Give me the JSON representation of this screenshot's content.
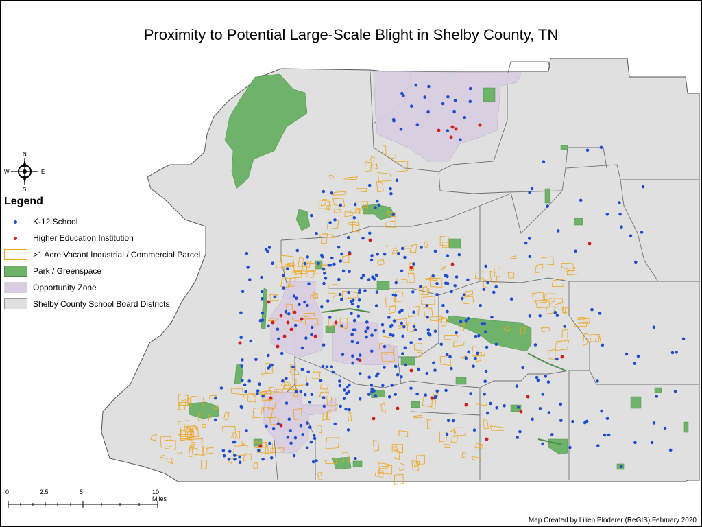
{
  "title": "Proximity to Potential Large-Scale Blight in Shelby County, TN",
  "compass": {
    "n": "N",
    "s": "S",
    "e": "E",
    "w": "W"
  },
  "legend": {
    "title": "Legend",
    "items": [
      {
        "label": "K-12 School",
        "symbol": "dot",
        "color": "#1f4fd1"
      },
      {
        "label": "Higher Education Institution",
        "symbol": "dot",
        "color": "#d11f1f"
      },
      {
        "label": ">1 Acre Vacant Industrial / Commercial Parcel",
        "symbol": "outline",
        "color": "#f0a51c"
      },
      {
        "label": "Park / Greenspace",
        "symbol": "fill",
        "color": "#6fb36b"
      },
      {
        "label": "Opportunity Zone",
        "symbol": "fill",
        "color": "#d9cde0"
      },
      {
        "label": "Shelby County School Board Districts",
        "symbol": "fill",
        "color": "#e0e0e0"
      }
    ]
  },
  "scale": {
    "ticks": [
      "0",
      "2.5",
      "5",
      "10 Miles"
    ]
  },
  "credit": "Map Created by Lilien Ploderer (ReGIS) February 2020",
  "colors": {
    "county": "#e0e0e0",
    "border": "#707070",
    "park": "#6fb36b",
    "opportunity": "#d9cde0",
    "parcel": "#f0a51c",
    "school": "#1f4fd1",
    "college": "#d11f1f"
  }
}
